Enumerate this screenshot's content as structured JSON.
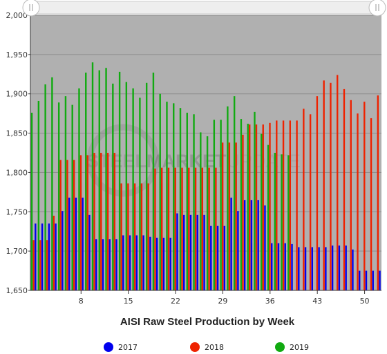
{
  "colors": {
    "plot_bg": "#b0b0b0",
    "gridline": "#8c8c8c",
    "series_2017": "#0000ee",
    "series_2018": "#ee2200",
    "series_2019": "#11aa11",
    "scrollbar": "#eeeeee"
  },
  "watermark": {
    "word1": "STEEL",
    "word2": "MARKET",
    "word3": "UPDATE"
  },
  "chart_data": {
    "type": "bar",
    "xlabel": "AISI Raw Steel Production by Week",
    "ylabel": "",
    "ylim": [
      1650,
      2000
    ],
    "y_ticks": [
      1650,
      1700,
      1750,
      1800,
      1850,
      1900,
      1950,
      2000
    ],
    "y_tick_labels": [
      "1,650",
      "1,700",
      "1,750",
      "1,800",
      "1,850",
      "1,900",
      "1,950",
      "2,000"
    ],
    "x_ticks": [
      8,
      15,
      22,
      29,
      36,
      43,
      50
    ],
    "x_tick_labels": [
      "8",
      "15",
      "22",
      "29",
      "36",
      "43",
      "50"
    ],
    "x_range": [
      0.5,
      52.5
    ],
    "grid": true,
    "legend_position": "bottom",
    "scrollbar": true,
    "series": [
      {
        "name": "2017",
        "weeks": [
          1,
          2,
          3,
          4,
          5,
          6,
          7,
          8,
          9,
          10,
          11,
          12,
          13,
          14,
          15,
          16,
          17,
          18,
          19,
          20,
          21,
          22,
          23,
          24,
          25,
          26,
          27,
          28,
          29,
          30,
          31,
          32,
          33,
          34,
          35,
          36,
          37,
          38,
          39,
          40,
          41,
          42,
          43,
          44,
          45,
          46,
          47,
          48,
          49,
          50,
          51,
          52
        ],
        "values": [
          1735,
          1735,
          1735,
          1735,
          1751,
          1768,
          1768,
          1768,
          1746,
          1715,
          1715,
          1715,
          1715,
          1720,
          1720,
          1720,
          1720,
          1718,
          1717,
          1717,
          1717,
          1748,
          1746,
          1746,
          1746,
          1746,
          1732,
          1732,
          1732,
          1768,
          1751,
          1765,
          1765,
          1765,
          1758,
          1710,
          1710,
          1710,
          1709,
          1705,
          1705,
          1705,
          1705,
          1705,
          1707,
          1707,
          1707,
          1702,
          1675,
          1675,
          1675,
          1675
        ]
      },
      {
        "name": "2018",
        "weeks": [
          1,
          2,
          3,
          4,
          5,
          6,
          7,
          8,
          9,
          10,
          11,
          12,
          13,
          14,
          15,
          16,
          17,
          18,
          19,
          20,
          21,
          22,
          23,
          24,
          25,
          26,
          27,
          28,
          29,
          30,
          31,
          32,
          33,
          34,
          35,
          36,
          37,
          38,
          39,
          40,
          41,
          42,
          43,
          44,
          45,
          46,
          47,
          48,
          49,
          50,
          51,
          52
        ],
        "values": [
          1714,
          1714,
          1714,
          1745,
          1816,
          1816,
          1816,
          1822,
          1822,
          1825,
          1825,
          1825,
          1825,
          1786,
          1786,
          1786,
          1786,
          1786,
          1805,
          1806,
          1806,
          1806,
          1806,
          1806,
          1806,
          1806,
          1806,
          1806,
          1838,
          1838,
          1838,
          1848,
          1861,
          1861,
          1861,
          1863,
          1866,
          1866,
          1866,
          1866,
          1881,
          1874,
          1897,
          1917,
          1914,
          1924,
          1906,
          1892,
          1875,
          1890,
          1869,
          1898
        ]
      },
      {
        "name": "2019",
        "weeks": [
          1,
          2,
          3,
          4,
          5,
          6,
          7,
          8,
          9,
          10,
          11,
          12,
          13,
          14,
          15,
          16,
          17,
          18,
          19,
          20,
          21,
          22,
          23,
          24,
          25,
          26,
          27,
          28,
          29,
          30,
          31,
          32,
          33,
          34,
          35,
          36,
          37,
          38,
          39
        ],
        "values": [
          1876,
          1891,
          1912,
          1921,
          1889,
          1897,
          1886,
          1907,
          1927,
          1940,
          1930,
          1933,
          1913,
          1928,
          1915,
          1907,
          1895,
          1914,
          1927,
          1900,
          1890,
          1888,
          1882,
          1876,
          1874,
          1851,
          1846,
          1867,
          1867,
          1884,
          1897,
          1868,
          1862,
          1877,
          1849,
          1835,
          1825,
          1823,
          1822
        ]
      }
    ]
  }
}
